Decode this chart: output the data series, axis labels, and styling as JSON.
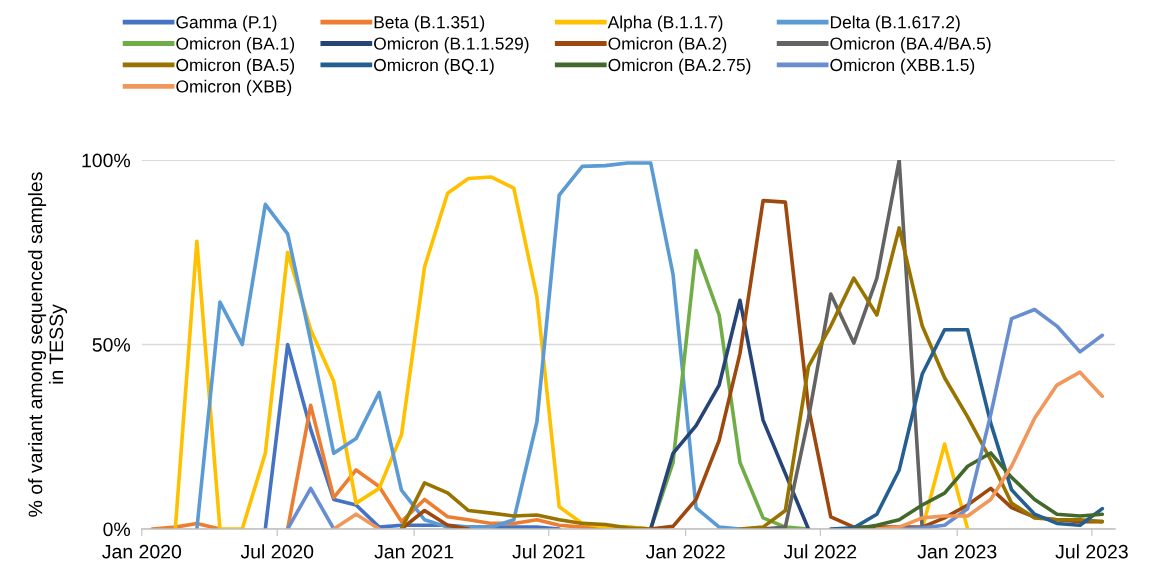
{
  "chart_data": {
    "type": "line",
    "ylabel": "% of variant among sequenced samples\nin TESSy",
    "x": [
      "2020-01-15",
      "2020-02-15",
      "2020-03-15",
      "2020-04-15",
      "2020-05-15",
      "2020-06-15",
      "2020-07-15",
      "2020-08-15",
      "2020-09-15",
      "2020-10-15",
      "2020-11-15",
      "2020-12-15",
      "2021-01-15",
      "2021-02-15",
      "2021-03-15",
      "2021-04-15",
      "2021-05-15",
      "2021-06-15",
      "2021-07-15",
      "2021-08-15",
      "2021-09-15",
      "2021-10-15",
      "2021-11-15",
      "2021-12-15",
      "2022-01-15",
      "2022-02-15",
      "2022-03-15",
      "2022-04-15",
      "2022-05-15",
      "2022-06-15",
      "2022-07-15",
      "2022-08-15",
      "2022-09-15",
      "2022-10-15",
      "2022-11-15",
      "2022-12-15",
      "2023-01-15",
      "2023-02-15",
      "2023-03-15",
      "2023-04-15",
      "2023-05-15",
      "2023-06-15",
      "2023-07-15"
    ],
    "xlim": [
      "2020-01-01",
      "2023-08-01"
    ],
    "xticks": [
      {
        "value": "2020-01-01",
        "label": "Jan 2020"
      },
      {
        "value": "2020-07-01",
        "label": "Jul 2020"
      },
      {
        "value": "2021-01-01",
        "label": "Jan 2021"
      },
      {
        "value": "2021-07-01",
        "label": "Jul 2021"
      },
      {
        "value": "2022-01-01",
        "label": "Jan 2022"
      },
      {
        "value": "2022-07-01",
        "label": "Jul 2022"
      },
      {
        "value": "2023-01-01",
        "label": "Jan 2023"
      },
      {
        "value": "2023-07-01",
        "label": "Jul 2023"
      }
    ],
    "ylim": [
      0,
      100
    ],
    "yticks": [
      {
        "value": 0,
        "label": "0%"
      },
      {
        "value": 50,
        "label": "50%"
      },
      {
        "value": 100,
        "label": "100%"
      }
    ],
    "grid": "y",
    "legend": "top",
    "marker": "none",
    "line_style": "solid",
    "series": [
      {
        "name": "Gamma (P.1)",
        "color": "#4472c4",
        "values": [
          null,
          null,
          null,
          null,
          null,
          0,
          50,
          27,
          8,
          6.5,
          0.5,
          1,
          1,
          1,
          0.5,
          0.5,
          0.5,
          0.5,
          0,
          null,
          null,
          null,
          null,
          null,
          null,
          null,
          null,
          null,
          null,
          null,
          null,
          null,
          null,
          null,
          null,
          null,
          null,
          null,
          null,
          null,
          null,
          null,
          null
        ]
      },
      {
        "name": "Beta (B.1.351)",
        "color": "#ed7d31",
        "values": [
          0,
          0.5,
          1.5,
          0,
          null,
          null,
          0,
          33.5,
          8.5,
          16,
          11.5,
          2,
          8,
          3.3,
          2.5,
          1.5,
          1.5,
          2.5,
          1,
          0.5,
          0.5,
          0.5,
          0,
          null,
          null,
          null,
          null,
          null,
          null,
          null,
          null,
          null,
          null,
          null,
          null,
          null,
          null,
          null,
          null,
          null,
          null,
          null,
          null
        ]
      },
      {
        "name": "Alpha (B.1.1.7)",
        "color": "#ffc000",
        "values": [
          null,
          0,
          78,
          0,
          0,
          20.5,
          75,
          54,
          40,
          7,
          11,
          25.5,
          71,
          91,
          95,
          95.4,
          92.4,
          63,
          6,
          1.5,
          0.5,
          0.5,
          0,
          null,
          null,
          null,
          null,
          null,
          null,
          null,
          null,
          null,
          null,
          null,
          0,
          23,
          0,
          null,
          null,
          null,
          null,
          null,
          null
        ]
      },
      {
        "name": "Delta (B.1.617.2)",
        "color": "#5b9bd5",
        "values": [
          null,
          null,
          0,
          61.5,
          50,
          88,
          80,
          51,
          20.5,
          24.5,
          37,
          10.5,
          2.5,
          0.5,
          0.5,
          0.5,
          2.5,
          29,
          90.5,
          98.3,
          98.5,
          99.2,
          99.2,
          69,
          5.7,
          0.5,
          0,
          null,
          null,
          null,
          null,
          null,
          null,
          null,
          null,
          null,
          null,
          null,
          null,
          null,
          null,
          null,
          null
        ]
      },
      {
        "name": "Omicron (BA.1)",
        "color": "#70ad47",
        "values": [
          null,
          null,
          null,
          null,
          null,
          null,
          null,
          null,
          null,
          null,
          null,
          null,
          null,
          null,
          null,
          null,
          null,
          null,
          null,
          null,
          null,
          null,
          0,
          18,
          75.5,
          58,
          18,
          3,
          0.5,
          0,
          null,
          null,
          null,
          null,
          null,
          null,
          null,
          null,
          null,
          null,
          null,
          null,
          null
        ]
      },
      {
        "name": "Omicron (B.1.1.529)",
        "color": "#264478",
        "values": [
          null,
          null,
          null,
          null,
          null,
          null,
          null,
          null,
          null,
          null,
          null,
          null,
          null,
          null,
          null,
          null,
          null,
          null,
          null,
          null,
          null,
          null,
          0,
          20.5,
          28,
          39,
          62,
          29.5,
          15,
          0,
          null,
          null,
          null,
          null,
          null,
          null,
          null,
          null,
          null,
          null,
          null,
          null,
          null
        ]
      },
      {
        "name": "Omicron (BA.2)",
        "color": "#9e480e",
        "values": [
          null,
          null,
          null,
          null,
          null,
          null,
          null,
          null,
          null,
          null,
          null,
          0,
          5,
          1,
          0,
          null,
          null,
          null,
          null,
          null,
          null,
          null,
          0,
          0.7,
          8,
          24,
          47.6,
          89,
          88.6,
          33,
          3.3,
          0.5,
          0.5,
          0.5,
          0.5,
          3,
          6.5,
          11,
          5.8,
          3.2,
          2.5,
          2,
          2
        ]
      },
      {
        "name": "Omicron (BA.4/BA.5)",
        "color": "#636363",
        "values": [
          null,
          null,
          null,
          null,
          null,
          null,
          null,
          null,
          null,
          null,
          null,
          null,
          null,
          null,
          null,
          null,
          null,
          null,
          null,
          null,
          null,
          null,
          null,
          null,
          null,
          null,
          null,
          0,
          0.5,
          30,
          63.7,
          50.4,
          68,
          100,
          0,
          null,
          null,
          null,
          null,
          null,
          null,
          null,
          null
        ]
      },
      {
        "name": "Omicron (BA.5)",
        "color": "#997300",
        "values": [
          null,
          null,
          null,
          null,
          null,
          null,
          null,
          null,
          null,
          null,
          null,
          0,
          12.5,
          9.8,
          5,
          4.3,
          3.5,
          3.8,
          2.5,
          1.5,
          1.2,
          0.3,
          0,
          null,
          null,
          null,
          0,
          0.5,
          5,
          44,
          55,
          68,
          58,
          81.6,
          55,
          41,
          30.4,
          18.7,
          7,
          3,
          2.5,
          2.5,
          2
        ]
      },
      {
        "name": "Omicron (BQ.1)",
        "color": "#255e91",
        "values": [
          null,
          null,
          null,
          null,
          null,
          null,
          null,
          null,
          null,
          null,
          null,
          null,
          null,
          null,
          null,
          null,
          null,
          null,
          null,
          null,
          null,
          null,
          null,
          null,
          null,
          null,
          null,
          null,
          null,
          null,
          0,
          0.3,
          4,
          16,
          42,
          54,
          54,
          28.7,
          10.6,
          4,
          1.5,
          1,
          5.5
        ]
      },
      {
        "name": "Omicron (BA.2.75)",
        "color": "#43682b",
        "values": [
          null,
          null,
          null,
          null,
          null,
          null,
          null,
          null,
          null,
          null,
          null,
          null,
          null,
          null,
          null,
          null,
          null,
          null,
          null,
          null,
          null,
          null,
          null,
          null,
          null,
          null,
          null,
          null,
          null,
          null,
          null,
          0,
          1,
          2.5,
          6.5,
          9.7,
          17,
          20.6,
          14,
          8,
          4,
          3.5,
          4
        ]
      },
      {
        "name": "Omicron (XBB.1.5)",
        "color": "#698ed0",
        "values": [
          null,
          null,
          null,
          null,
          null,
          null,
          0,
          11,
          0,
          null,
          null,
          null,
          null,
          null,
          null,
          null,
          null,
          null,
          null,
          null,
          null,
          null,
          null,
          null,
          null,
          null,
          null,
          null,
          null,
          null,
          null,
          null,
          null,
          0,
          0.3,
          1,
          5.5,
          31,
          57,
          59.5,
          55,
          48,
          52.5
        ]
      },
      {
        "name": "Omicron (XBB)",
        "color": "#f1975a",
        "values": [
          null,
          null,
          null,
          null,
          null,
          null,
          null,
          null,
          0,
          4,
          0,
          null,
          null,
          null,
          null,
          null,
          null,
          null,
          null,
          null,
          null,
          null,
          null,
          null,
          null,
          null,
          null,
          null,
          null,
          null,
          null,
          null,
          0,
          0.5,
          3,
          3.5,
          3.5,
          8,
          17,
          30,
          39,
          42.5,
          36
        ]
      }
    ]
  }
}
